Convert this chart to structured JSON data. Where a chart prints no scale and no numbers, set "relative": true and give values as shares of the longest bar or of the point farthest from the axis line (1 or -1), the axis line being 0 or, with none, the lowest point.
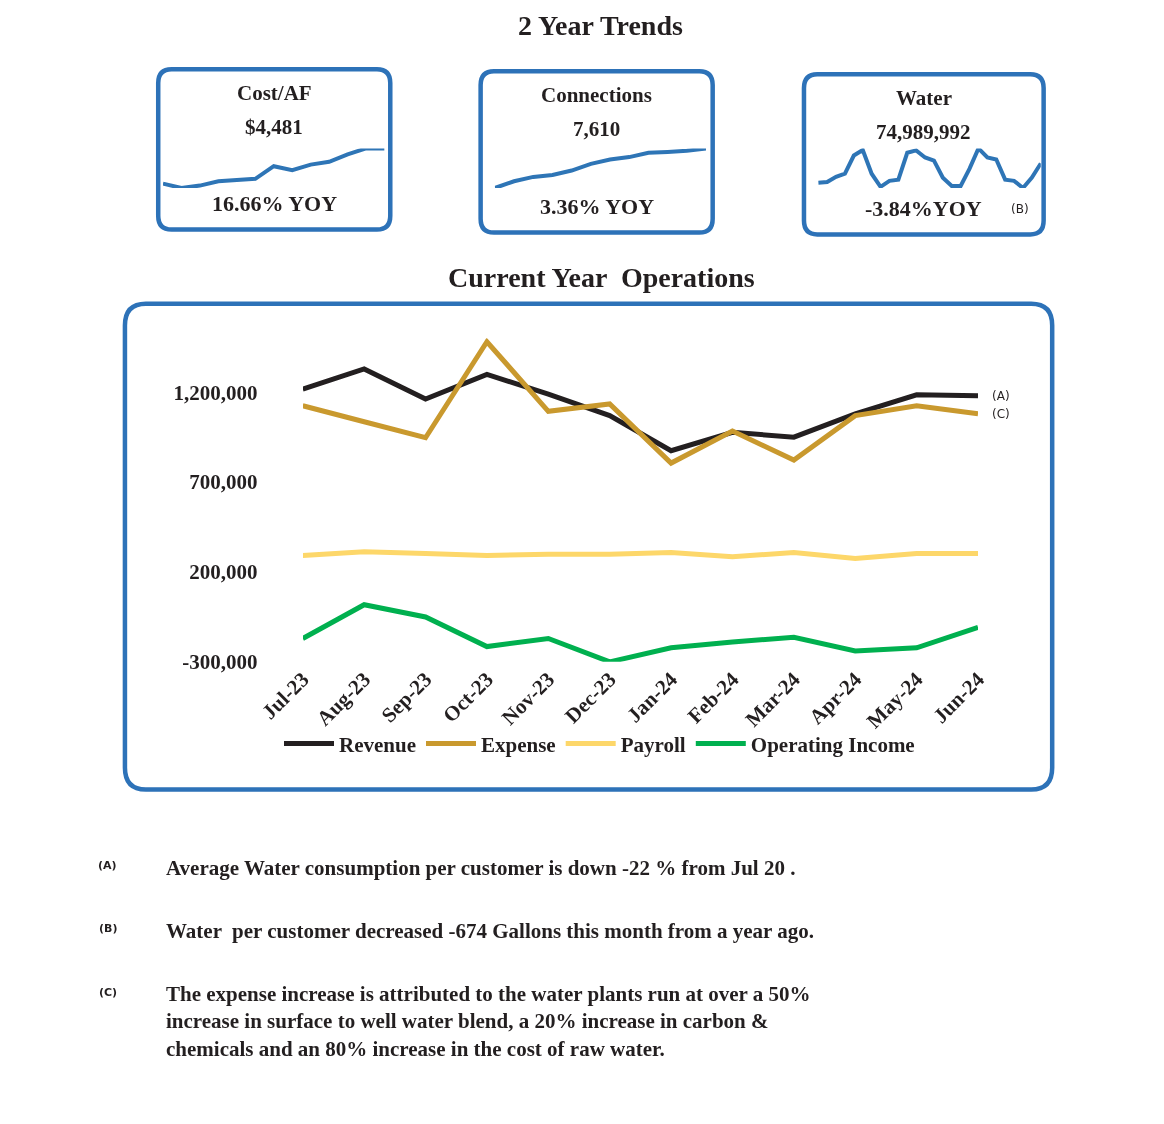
{
  "chart_data": [
    {
      "type": "line",
      "relative": true,
      "title": "Cost/AF",
      "subtitle": "$4,481",
      "annotations": [
        "2 Year Trends",
        "16.66% YOY"
      ],
      "categories": [
        null,
        null,
        null,
        null,
        null,
        null,
        null,
        null,
        null,
        null,
        null,
        null,
        null
      ],
      "series": [
        {
          "color": "#2e75b6",
          "values": [
            0.11,
            0,
            0.06,
            0.17,
            0.2,
            0.23,
            0.55,
            0.45,
            0.59,
            0.66,
            0.85,
            1,
            1
          ]
        }
      ]
    },
    {
      "type": "line",
      "relative": true,
      "title": "Connections",
      "subtitle": "7,610",
      "annotations": [
        "3.36% YOY"
      ],
      "categories": [
        null,
        null,
        null,
        null,
        null,
        null,
        null,
        null,
        null,
        null,
        null,
        null
      ],
      "series": [
        {
          "color": "#2e75b6",
          "values": [
            0,
            0.17,
            0.28,
            0.33,
            0.44,
            0.61,
            0.72,
            0.78,
            0.89,
            0.91,
            0.94,
            1
          ]
        }
      ]
    },
    {
      "type": "line",
      "relative": true,
      "title": "Water",
      "subtitle": "74,989,992",
      "annotations": [
        "-3.84%YOY",
        "(B)"
      ],
      "categories": [
        null,
        null,
        null,
        null,
        null,
        null,
        null,
        null,
        null,
        null,
        null,
        null,
        null,
        null,
        null,
        null,
        null,
        null,
        null,
        null,
        null,
        null,
        null,
        null,
        null,
        null
      ],
      "series": [
        {
          "color": "#2e75b6",
          "values": [
            0.13,
            0.15,
            0.28,
            0.36,
            0.82,
            0.96,
            0.36,
            0.03,
            0.18,
            0.21,
            0.89,
            0.95,
            0.77,
            0.69,
            0.26,
            0.05,
            0.05,
            0.49,
            1,
            0.77,
            0.72,
            0.21,
            0.18,
            0,
            0.26,
            0.62
          ]
        }
      ]
    },
    {
      "type": "line",
      "title": "Current Year  Operations",
      "legend": "bottom",
      "categories": [
        "Jul-23",
        "Aug-23",
        "Sep-23",
        "Oct-23",
        "Nov-23",
        "Dec-23",
        "Jan-24",
        "Feb-24",
        "Mar-24",
        "Apr-24",
        "May-24",
        "Jun-24"
      ],
      "ylim": [
        -300000,
        1500000
      ],
      "yticks": [
        {
          "value": 1200000,
          "label": "1,200,000"
        },
        {
          "value": 700000,
          "label": "700,000"
        },
        {
          "value": 200000,
          "label": "200,000"
        },
        {
          "value": -300000,
          "label": "-300,000"
        }
      ],
      "series": [
        {
          "name": "Revenue",
          "color": "#231f20",
          "values": [
            1217000,
            1330000,
            1162000,
            1299000,
            1190000,
            1070000,
            875000,
            977000,
            950000,
            1080000,
            1186000,
            1180000
          ]
        },
        {
          "name": "Expense",
          "color": "#c9992e",
          "values": [
            1125000,
            1036000,
            947000,
            1481000,
            1094000,
            1135000,
            806000,
            984000,
            823000,
            1070000,
            1125000,
            1080000
          ]
        },
        {
          "name": "Payroll",
          "color": "#fdd76a",
          "values": [
            292000,
            312000,
            303000,
            292000,
            299000,
            299000,
            309000,
            285000,
            309000,
            275000,
            303000,
            303000
          ]
        },
        {
          "name": "Operating Income",
          "color": "#00b04f",
          "values": [
            -170000,
            18000,
            -50000,
            -215000,
            -170000,
            -300000,
            -222000,
            -190000,
            -163000,
            -239000,
            -222000,
            -108000
          ]
        }
      ],
      "annotations": [
        {
          "text": "(A)",
          "x": "Jun-24",
          "y": 1180000
        },
        {
          "text": "(C)",
          "x": "Jun-24",
          "y": 1080000
        },
        "(A)",
        "Average Water consumption per customer is down -22 % from Jul 20 .",
        "(B)",
        "Water  per customer decreased -674 Gallons this month from a year ago.",
        "(C)",
        "The expense increase is attributed to the water plants run at over a 50% increase in surface to well water blend, a 20% increase in carbon & chemicals and an 80% increase in the cost of raw water."
      ]
    }
  ]
}
